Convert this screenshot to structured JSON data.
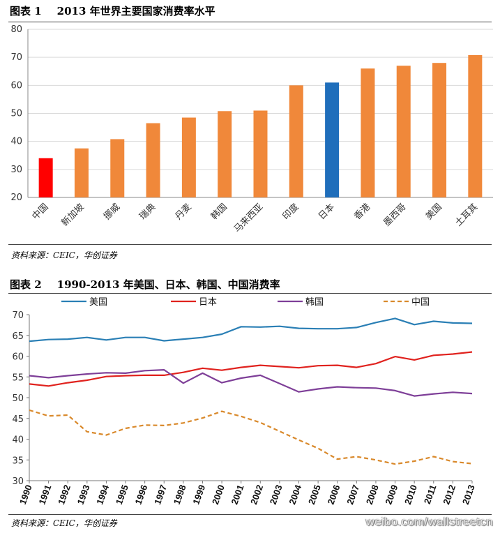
{
  "figure1": {
    "title_num": "图表 1",
    "title_text": "2013 年世界主要国家消费率水平",
    "source": "资料来源：CEIC，华创证券"
  },
  "figure2": {
    "title_num": "图表 2",
    "title_text": "1990-2013 年美国、日本、韩国、中国消费率",
    "source": "资料来源：CEIC，华创证券"
  },
  "watermark": "weibo.com/wallstreetcn",
  "chart_data": [
    {
      "type": "bar",
      "title": "2013 年世界主要国家消费率水平",
      "categories": [
        "中国",
        "新加坡",
        "挪威",
        "瑞典",
        "丹麦",
        "韩国",
        "马来西亚",
        "印度",
        "日本",
        "香港",
        "墨西哥",
        "美国",
        "土耳其"
      ],
      "values": [
        34,
        37.5,
        40.8,
        46.5,
        48.5,
        50.8,
        51,
        60,
        61,
        66,
        67,
        68,
        70.8
      ],
      "colors": [
        "#ff0000",
        "#f0883a",
        "#f0883a",
        "#f0883a",
        "#f0883a",
        "#f0883a",
        "#f0883a",
        "#f0883a",
        "#1f6ebb",
        "#f0883a",
        "#f0883a",
        "#f0883a",
        "#f0883a"
      ],
      "ylim": [
        20,
        80
      ],
      "yticks": [
        20,
        30,
        40,
        50,
        60,
        70,
        80
      ],
      "grid": true,
      "xlabel": "",
      "ylabel": ""
    },
    {
      "type": "line",
      "title": "1990-2013 年美国、日本、韩国、中国消费率",
      "x": [
        "1990",
        "1991",
        "1992",
        "1993",
        "1994",
        "1995",
        "1996",
        "1997",
        "1998",
        "1999",
        "2000",
        "2001",
        "2002",
        "2003",
        "2004",
        "2005",
        "2006",
        "2007",
        "2008",
        "2009",
        "2010",
        "2011",
        "2012",
        "2013"
      ],
      "ylim": [
        30,
        70
      ],
      "yticks": [
        30,
        35,
        40,
        45,
        50,
        55,
        60,
        65,
        70
      ],
      "legend_position": "top",
      "series": [
        {
          "name": "美国",
          "color": "#2a7fb5",
          "dash": false,
          "values": [
            63.6,
            64.0,
            64.1,
            64.5,
            63.9,
            64.5,
            64.5,
            63.7,
            64.1,
            64.5,
            65.3,
            67.1,
            67.0,
            67.2,
            66.7,
            66.6,
            66.6,
            66.9,
            68.1,
            69.1,
            67.6,
            68.4,
            68.0,
            67.9
          ]
        },
        {
          "name": "日本",
          "color": "#e0221e",
          "dash": false,
          "values": [
            53.3,
            52.8,
            53.6,
            54.2,
            55.1,
            55.3,
            55.4,
            55.4,
            56.1,
            57.1,
            56.6,
            57.3,
            57.8,
            57.5,
            57.2,
            57.7,
            57.8,
            57.3,
            58.2,
            59.9,
            59.1,
            60.2,
            60.5,
            61.0
          ]
        },
        {
          "name": "韩国",
          "color": "#7e3f98",
          "dash": false,
          "values": [
            55.3,
            54.8,
            55.3,
            55.7,
            56.0,
            55.9,
            56.5,
            56.7,
            53.5,
            55.9,
            53.6,
            54.7,
            55.4,
            53.4,
            51.4,
            52.1,
            52.6,
            52.4,
            52.3,
            51.7,
            50.4,
            50.9,
            51.3,
            51.0
          ]
        },
        {
          "name": "中国",
          "color": "#d9892b",
          "dash": true,
          "values": [
            47.0,
            45.6,
            45.8,
            41.8,
            41.0,
            42.6,
            43.4,
            43.3,
            43.9,
            45.1,
            46.7,
            45.5,
            44.0,
            41.9,
            39.8,
            37.8,
            35.2,
            35.8,
            35.0,
            34.0,
            34.7,
            35.8,
            34.6,
            34.1
          ]
        }
      ]
    }
  ]
}
